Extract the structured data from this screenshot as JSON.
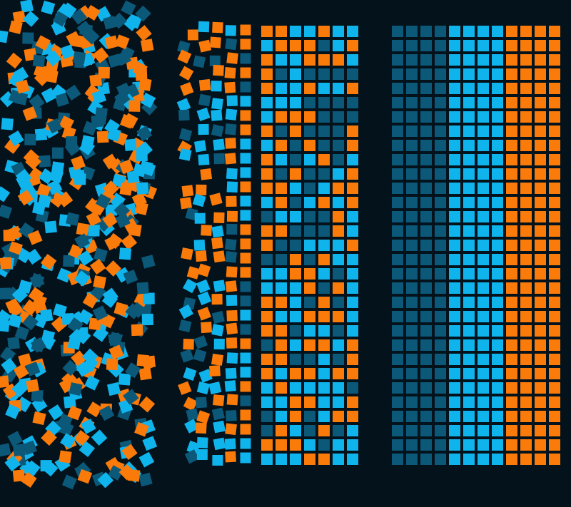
{
  "palette": {
    "background": "#04121c",
    "orange": "#fa7a0a",
    "light_blue": "#10b4ec",
    "dark_blue": "#0b5878"
  },
  "panels": [
    {
      "name": "scattered-squares-panel",
      "state": "chaotic",
      "color_mix": [
        "orange",
        "light_blue",
        "dark_blue"
      ]
    },
    {
      "name": "transition-panel",
      "state": "partially aligned",
      "color_mix": [
        "orange",
        "light_blue",
        "dark_blue"
      ]
    },
    {
      "name": "sorted-grid-panel",
      "state": "sorted by color",
      "color_order": [
        "dark_blue",
        "light_blue",
        "orange"
      ]
    }
  ]
}
